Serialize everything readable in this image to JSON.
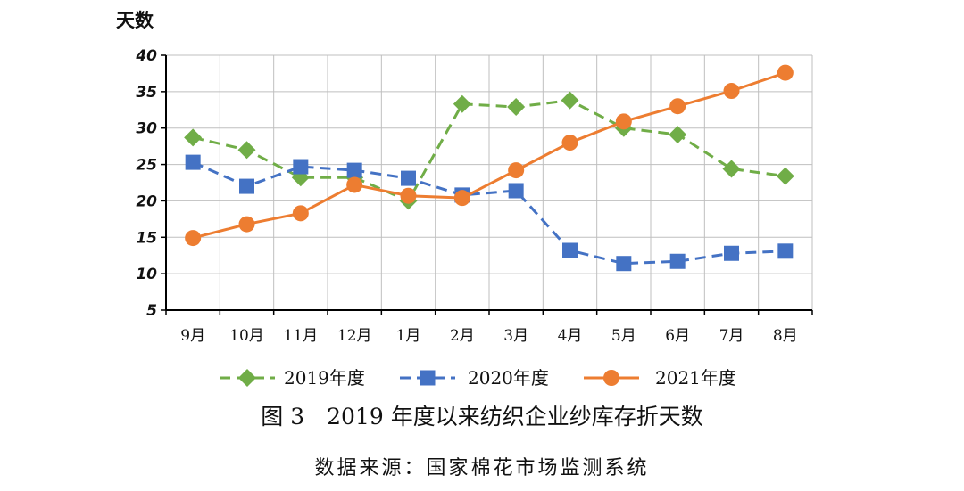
{
  "chart_data": {
    "type": "line",
    "ylabel": "天数",
    "ylim": [
      5,
      40
    ],
    "yticks": [
      "5",
      "10",
      "15",
      "20",
      "25",
      "30",
      "35",
      "40"
    ],
    "categories": [
      "9月",
      "10月",
      "11月",
      "12月",
      "1月",
      "2月",
      "3月",
      "4月",
      "5月",
      "6月",
      "7月",
      "8月"
    ],
    "grid": true,
    "legend_position": "bottom",
    "series": [
      {
        "name": "2019年度",
        "color": "#70ad47",
        "line_style": "dashed",
        "marker": "diamond",
        "values": [
          28.7,
          27.0,
          23.2,
          23.2,
          20.0,
          33.3,
          32.9,
          33.8,
          30.0,
          29.1,
          24.4,
          23.4
        ]
      },
      {
        "name": "2020年度",
        "color": "#4472c4",
        "line_style": "dashed",
        "marker": "square",
        "values": [
          25.3,
          22.0,
          24.7,
          24.2,
          23.1,
          20.8,
          21.4,
          13.2,
          11.4,
          11.7,
          12.8,
          13.1
        ]
      },
      {
        "name": "2021年度",
        "color": "#ed7d31",
        "line_style": "solid",
        "marker": "circle",
        "values": [
          14.9,
          16.8,
          18.3,
          22.2,
          20.7,
          20.4,
          24.2,
          28.0,
          30.9,
          33.0,
          35.1,
          37.6
        ]
      }
    ],
    "title": "图 3　2019 年度以来纺织企业纱库存折天数",
    "source": "数据来源：国家棉花市场监测系统"
  }
}
